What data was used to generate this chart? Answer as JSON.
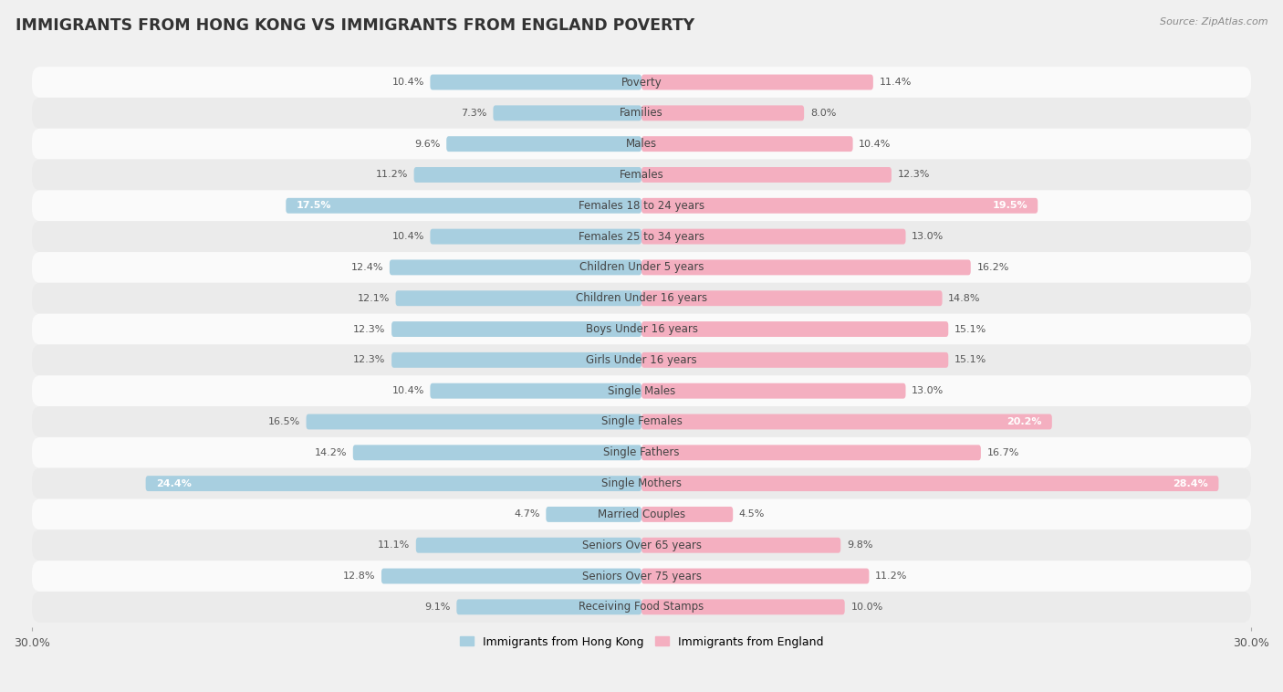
{
  "title": "IMMIGRANTS FROM HONG KONG VS IMMIGRANTS FROM ENGLAND POVERTY",
  "source": "Source: ZipAtlas.com",
  "categories": [
    "Poverty",
    "Families",
    "Males",
    "Females",
    "Females 18 to 24 years",
    "Females 25 to 34 years",
    "Children Under 5 years",
    "Children Under 16 years",
    "Boys Under 16 years",
    "Girls Under 16 years",
    "Single Males",
    "Single Females",
    "Single Fathers",
    "Single Mothers",
    "Married Couples",
    "Seniors Over 65 years",
    "Seniors Over 75 years",
    "Receiving Food Stamps"
  ],
  "hong_kong_values": [
    10.4,
    7.3,
    9.6,
    11.2,
    17.5,
    10.4,
    12.4,
    12.1,
    12.3,
    12.3,
    10.4,
    16.5,
    14.2,
    24.4,
    4.7,
    11.1,
    12.8,
    9.1
  ],
  "england_values": [
    11.4,
    8.0,
    10.4,
    12.3,
    19.5,
    13.0,
    16.2,
    14.8,
    15.1,
    15.1,
    13.0,
    20.2,
    16.7,
    28.4,
    4.5,
    9.8,
    11.2,
    10.0
  ],
  "hong_kong_color": "#7ab8d9",
  "england_color": "#f08ca8",
  "hong_kong_color_light": "#a8cfe0",
  "england_color_light": "#f4afc0",
  "hong_kong_label": "Immigrants from Hong Kong",
  "england_label": "Immigrants from England",
  "max_value": 30.0,
  "background_color": "#f0f0f0",
  "row_color_even": "#fafafa",
  "row_color_odd": "#ebebeb",
  "title_fontsize": 12.5,
  "label_fontsize": 8.5,
  "value_fontsize": 8.0,
  "bar_height": 0.5,
  "white_text_threshold_hk": 17.0,
  "white_text_threshold_eng": 19.0
}
